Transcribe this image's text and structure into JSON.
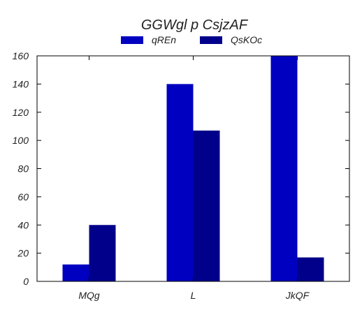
{
  "chart_data": {
    "type": "bar",
    "title": "GGWgl p CsjzAF",
    "xlabel": "",
    "ylabel": "",
    "categories": [
      "MQg",
      "L",
      "JkQF"
    ],
    "series": [
      {
        "name": "qREn",
        "values": [
          12,
          140,
          160
        ],
        "color": "#0000c0"
      },
      {
        "name": "QsKOc",
        "values": [
          40,
          107,
          17
        ],
        "color": "#00008b"
      }
    ],
    "ylim": [
      0,
      160
    ],
    "yticks": [
      0,
      20,
      40,
      60,
      80,
      100,
      120,
      140,
      160
    ],
    "grid": false,
    "legend": "top-center"
  }
}
